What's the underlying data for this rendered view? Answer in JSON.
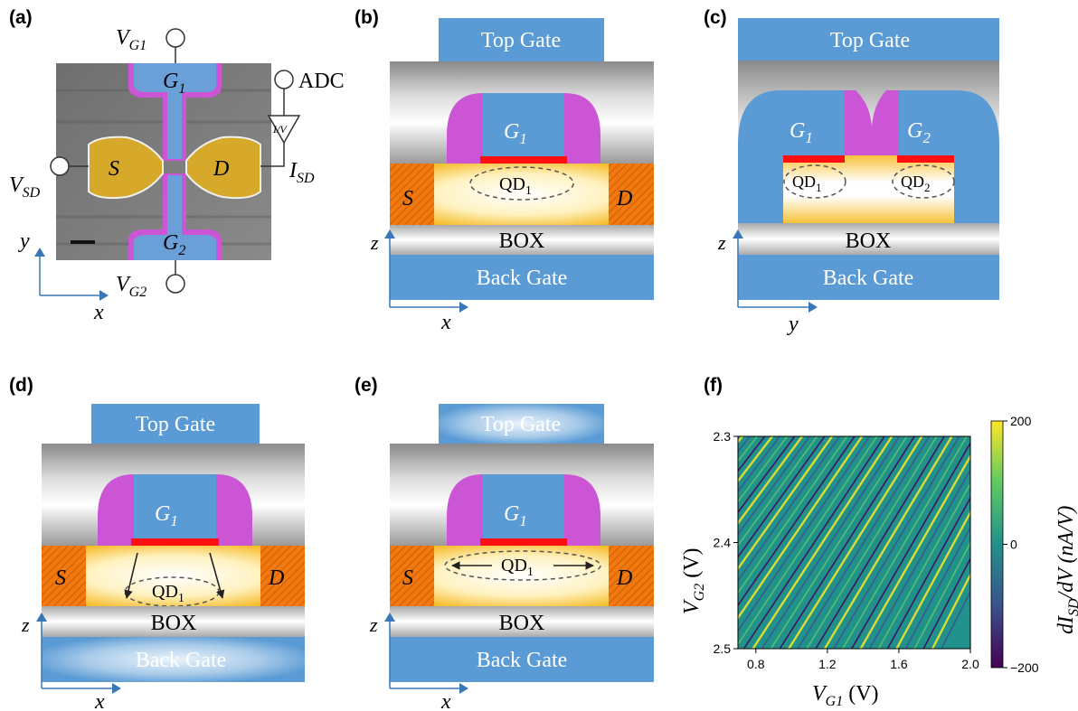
{
  "panels": {
    "a": {
      "label": "(a)",
      "vg1": "V",
      "vg1_sub": "G1",
      "vg2": "V",
      "vg2_sub": "G2",
      "vsd": "V",
      "vsd_sub": "SD",
      "isd": "I",
      "isd_sub": "SD",
      "adc": "ADC",
      "iv": "I/V",
      "g1": "G",
      "g1_sub": "1",
      "g2": "G",
      "g2_sub": "2",
      "s": "S",
      "d": "D",
      "ax_y": "y",
      "ax_x": "x"
    },
    "b": {
      "label": "(b)",
      "top_gate": "Top Gate",
      "g1": "G",
      "g1_sub": "1",
      "qd": "QD",
      "qd_sub": "1",
      "s": "S",
      "d": "D",
      "box": "BOX",
      "back_gate": "Back Gate",
      "ax_z": "z",
      "ax_x": "x"
    },
    "c": {
      "label": "(c)",
      "top_gate": "Top Gate",
      "g1": "G",
      "g1_sub": "1",
      "g2": "G",
      "g2_sub": "2",
      "qd1": "QD",
      "qd1_sub": "1",
      "qd2": "QD",
      "qd2_sub": "2",
      "box": "BOX",
      "back_gate": "Back Gate",
      "ax_z": "z",
      "ax_y": "y"
    },
    "d": {
      "label": "(d)",
      "top_gate": "Top Gate",
      "g1": "G",
      "g1_sub": "1",
      "qd": "QD",
      "qd_sub": "1",
      "s": "S",
      "d": "D",
      "box": "BOX",
      "back_gate": "Back Gate",
      "ax_z": "z",
      "ax_x": "x"
    },
    "e": {
      "label": "(e)",
      "top_gate": "Top Gate",
      "g1": "G",
      "g1_sub": "1",
      "qd": "QD",
      "qd_sub": "1",
      "s": "S",
      "d": "D",
      "box": "BOX",
      "back_gate": "Back Gate",
      "ax_z": "z",
      "ax_x": "x"
    },
    "f": {
      "label": "(f)"
    }
  },
  "chart_data": {
    "type": "heatmap",
    "xlabel": "V",
    "xlabel_sub": "G1",
    "xlabel_unit": " (V)",
    "ylabel": "V",
    "ylabel_sub": "G2",
    "ylabel_unit": " (V)",
    "xlim": [
      0.7,
      2.0
    ],
    "ylim": [
      2.5,
      2.3
    ],
    "xticks": [
      "0.8",
      "1.2",
      "1.6",
      "2.0"
    ],
    "xtick_values": [
      0.8,
      1.2,
      1.6,
      2.0
    ],
    "yticks": [
      "2.3",
      "2.4",
      "2.5"
    ],
    "ytick_values": [
      2.3,
      2.4,
      2.5
    ],
    "colorbar": {
      "label": "dI",
      "label_sub": "SD",
      "label_rest": "/dV (nA/V)",
      "range": [
        -200,
        200
      ],
      "ticks": [
        "200",
        "0",
        "−200"
      ],
      "tick_values": [
        200,
        0,
        -200
      ],
      "colormap": "viridis"
    }
  },
  "colors": {
    "gate_blue": "#5b9bd5",
    "spacer_magenta": "#cc55d6",
    "channel_yellow": "#f5c030",
    "contact_orange": "#f07a10",
    "oxide_red": "#ff1010"
  }
}
